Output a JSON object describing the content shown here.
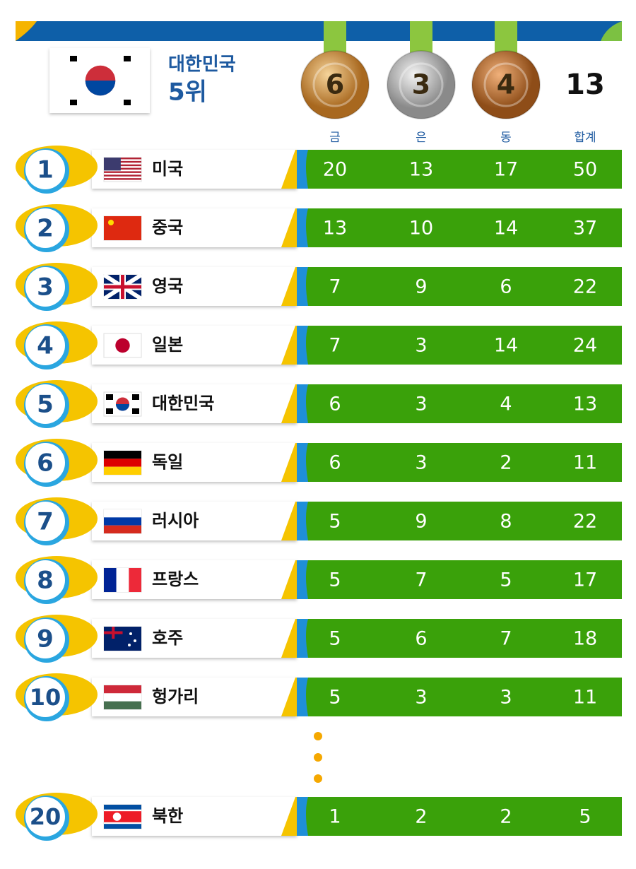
{
  "header": {
    "country": "대한민국",
    "rank": "5위",
    "gold": 6,
    "silver": 3,
    "bronze": 4,
    "total": 13
  },
  "columns": [
    "금",
    "은",
    "동",
    "합계"
  ],
  "rows": [
    {
      "rank": 1,
      "country": "미국",
      "gold": 20,
      "silver": 13,
      "bronze": 17,
      "total": 50
    },
    {
      "rank": 2,
      "country": "중국",
      "gold": 13,
      "silver": 10,
      "bronze": 14,
      "total": 37
    },
    {
      "rank": 3,
      "country": "영국",
      "gold": 7,
      "silver": 9,
      "bronze": 6,
      "total": 22
    },
    {
      "rank": 4,
      "country": "일본",
      "gold": 7,
      "silver": 3,
      "bronze": 14,
      "total": 24
    },
    {
      "rank": 5,
      "country": "대한민국",
      "gold": 6,
      "silver": 3,
      "bronze": 4,
      "total": 13
    },
    {
      "rank": 6,
      "country": "독일",
      "gold": 6,
      "silver": 3,
      "bronze": 2,
      "total": 11
    },
    {
      "rank": 7,
      "country": "러시아",
      "gold": 5,
      "silver": 9,
      "bronze": 8,
      "total": 22
    },
    {
      "rank": 8,
      "country": "프랑스",
      "gold": 5,
      "silver": 7,
      "bronze": 5,
      "total": 17
    },
    {
      "rank": 9,
      "country": "호주",
      "gold": 5,
      "silver": 6,
      "bronze": 7,
      "total": 18
    },
    {
      "rank": 10,
      "country": "헝가리",
      "gold": 5,
      "silver": 3,
      "bronze": 3,
      "total": 11
    },
    {
      "rank": 20,
      "country": "북한",
      "gold": 1,
      "silver": 2,
      "bronze": 2,
      "total": 5
    }
  ]
}
